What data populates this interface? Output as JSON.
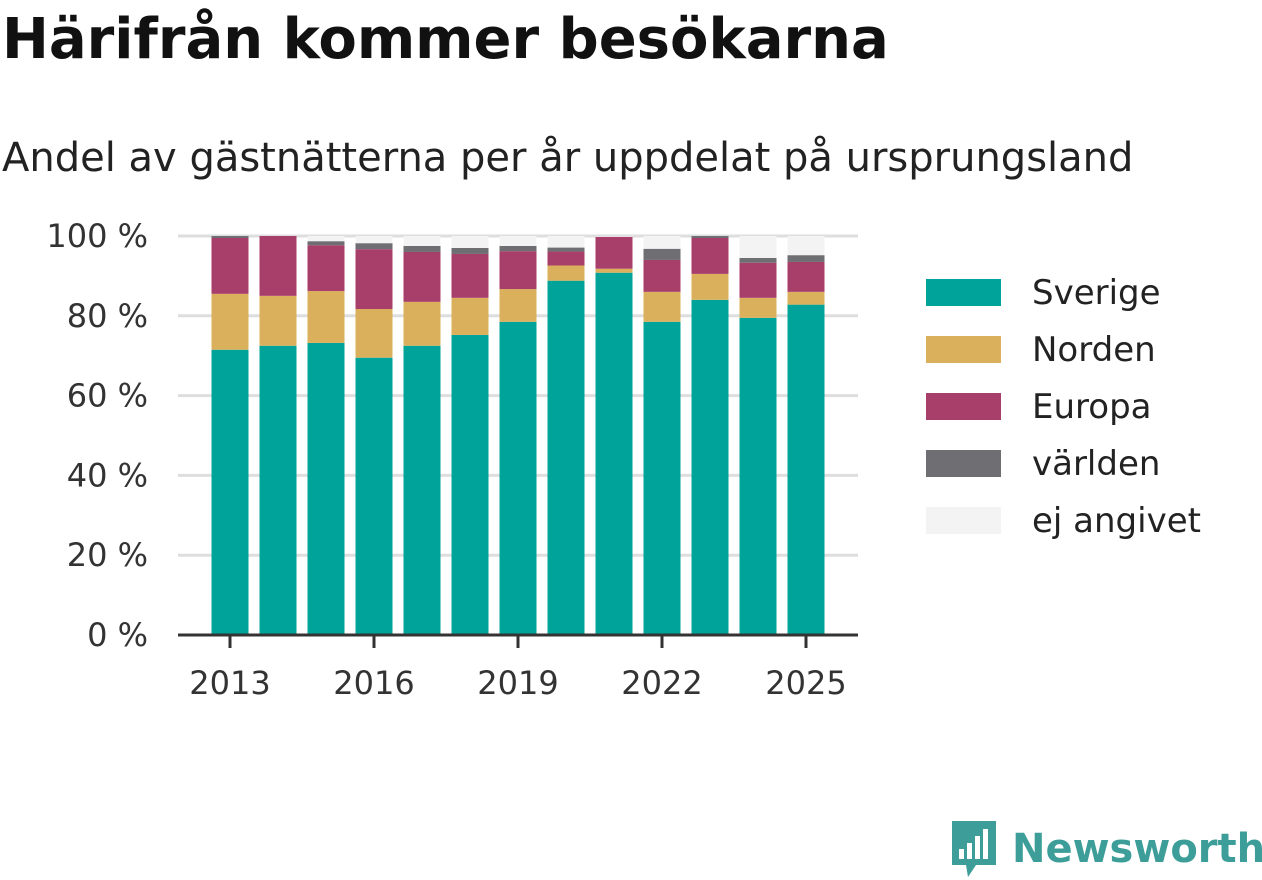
{
  "header": {
    "title": "Härifrån kommer besökarna",
    "subtitle": "Andel av gästnätterna per år uppdelat på ursprungsland"
  },
  "brand": {
    "name": "Newsworthy",
    "icon": "newsworthy-logo-icon",
    "color": "#3d9e99"
  },
  "chart_data": {
    "type": "bar",
    "stacked": true,
    "categories": [
      "2013",
      "2014",
      "2015",
      "2016",
      "2017",
      "2018",
      "2019",
      "2020",
      "2021",
      "2022",
      "2023",
      "2024",
      "2025"
    ],
    "x_tick_labels": [
      "2013",
      "2016",
      "2019",
      "2022",
      "2025"
    ],
    "y_ticks": [
      "0 %",
      "20 %",
      "40 %",
      "60 %",
      "80 %",
      "100 %"
    ],
    "ylim": [
      0,
      100
    ],
    "grid": true,
    "legend_position": "right",
    "series": [
      {
        "name": "Sverige",
        "color": "#00a39a",
        "values": [
          71.5,
          72.5,
          73.2,
          69.5,
          72.5,
          75.2,
          78.5,
          88.8,
          90.8,
          78.5,
          84.0,
          79.5,
          82.8
        ]
      },
      {
        "name": "Norden",
        "color": "#dbb05c",
        "values": [
          14.0,
          12.5,
          13.0,
          12.2,
          11.0,
          9.3,
          8.2,
          3.8,
          1.0,
          7.5,
          6.5,
          5.0,
          3.2
        ]
      },
      {
        "name": "Europa",
        "color": "#a83e6a",
        "values": [
          14.0,
          15.0,
          11.5,
          15.0,
          12.5,
          11.0,
          9.5,
          3.5,
          8.0,
          8.0,
          9.0,
          8.8,
          7.5
        ]
      },
      {
        "name": "världen",
        "color": "#6e6e73",
        "values": [
          0.5,
          0.0,
          1.0,
          1.5,
          1.5,
          1.5,
          1.3,
          1.0,
          0.0,
          2.8,
          0.5,
          1.2,
          1.7
        ]
      },
      {
        "name": "ej angivet",
        "color": "#f3f3f4",
        "values": [
          0.0,
          0.0,
          1.3,
          1.8,
          2.5,
          3.0,
          2.5,
          2.9,
          0.2,
          3.2,
          0.0,
          5.5,
          4.8
        ]
      }
    ]
  }
}
